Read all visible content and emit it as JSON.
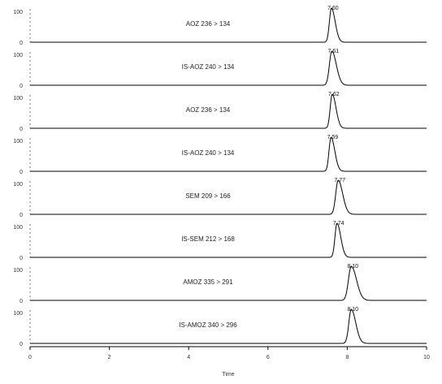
{
  "chart_data": {
    "type": "line",
    "xlabel": "Time",
    "xlim": [
      0,
      10
    ],
    "xticks": [
      "0",
      "2",
      "4",
      "6",
      "8",
      "10"
    ],
    "xtick_values": [
      0,
      2,
      4,
      6,
      8,
      10
    ],
    "line_color": "#000000",
    "panels": [
      {
        "label": "AOZ 236 > 134",
        "ymax_label": "100",
        "ymin_label": "0",
        "peak_time": 7.6,
        "peak_label": "7.60",
        "width": 0.05
      },
      {
        "label": "IS-AOZ 240 > 134",
        "ymax_label": "100",
        "ymin_label": "0",
        "peak_time": 7.61,
        "peak_label": "7.61",
        "width": 0.06
      },
      {
        "label": "AOZ 236 > 134",
        "ymax_label": "100",
        "ymin_label": "0",
        "peak_time": 7.62,
        "peak_label": "7.62",
        "width": 0.05
      },
      {
        "label": "IS-AOZ 240 > 134",
        "ymax_label": "100",
        "ymin_label": "0",
        "peak_time": 7.59,
        "peak_label": "7.59",
        "width": 0.05
      },
      {
        "label": "SEM 209 > 166",
        "ymax_label": "100",
        "ymin_label": "0",
        "peak_time": 7.77,
        "peak_label": "7.77",
        "width": 0.06
      },
      {
        "label": "IS-SEM 212 > 168",
        "ymax_label": "100",
        "ymin_label": "0",
        "peak_time": 7.74,
        "peak_label": "7.74",
        "width": 0.05
      },
      {
        "label": "AMOZ 335 > 291",
        "ymax_label": "100",
        "ymin_label": "0",
        "peak_time": 8.1,
        "peak_label": "8.10",
        "width": 0.07
      },
      {
        "label": "IS-AMOZ 340 > 296",
        "ymax_label": "100",
        "ymin_label": "0",
        "peak_time": 8.1,
        "peak_label": "8.10",
        "width": 0.06
      }
    ]
  }
}
